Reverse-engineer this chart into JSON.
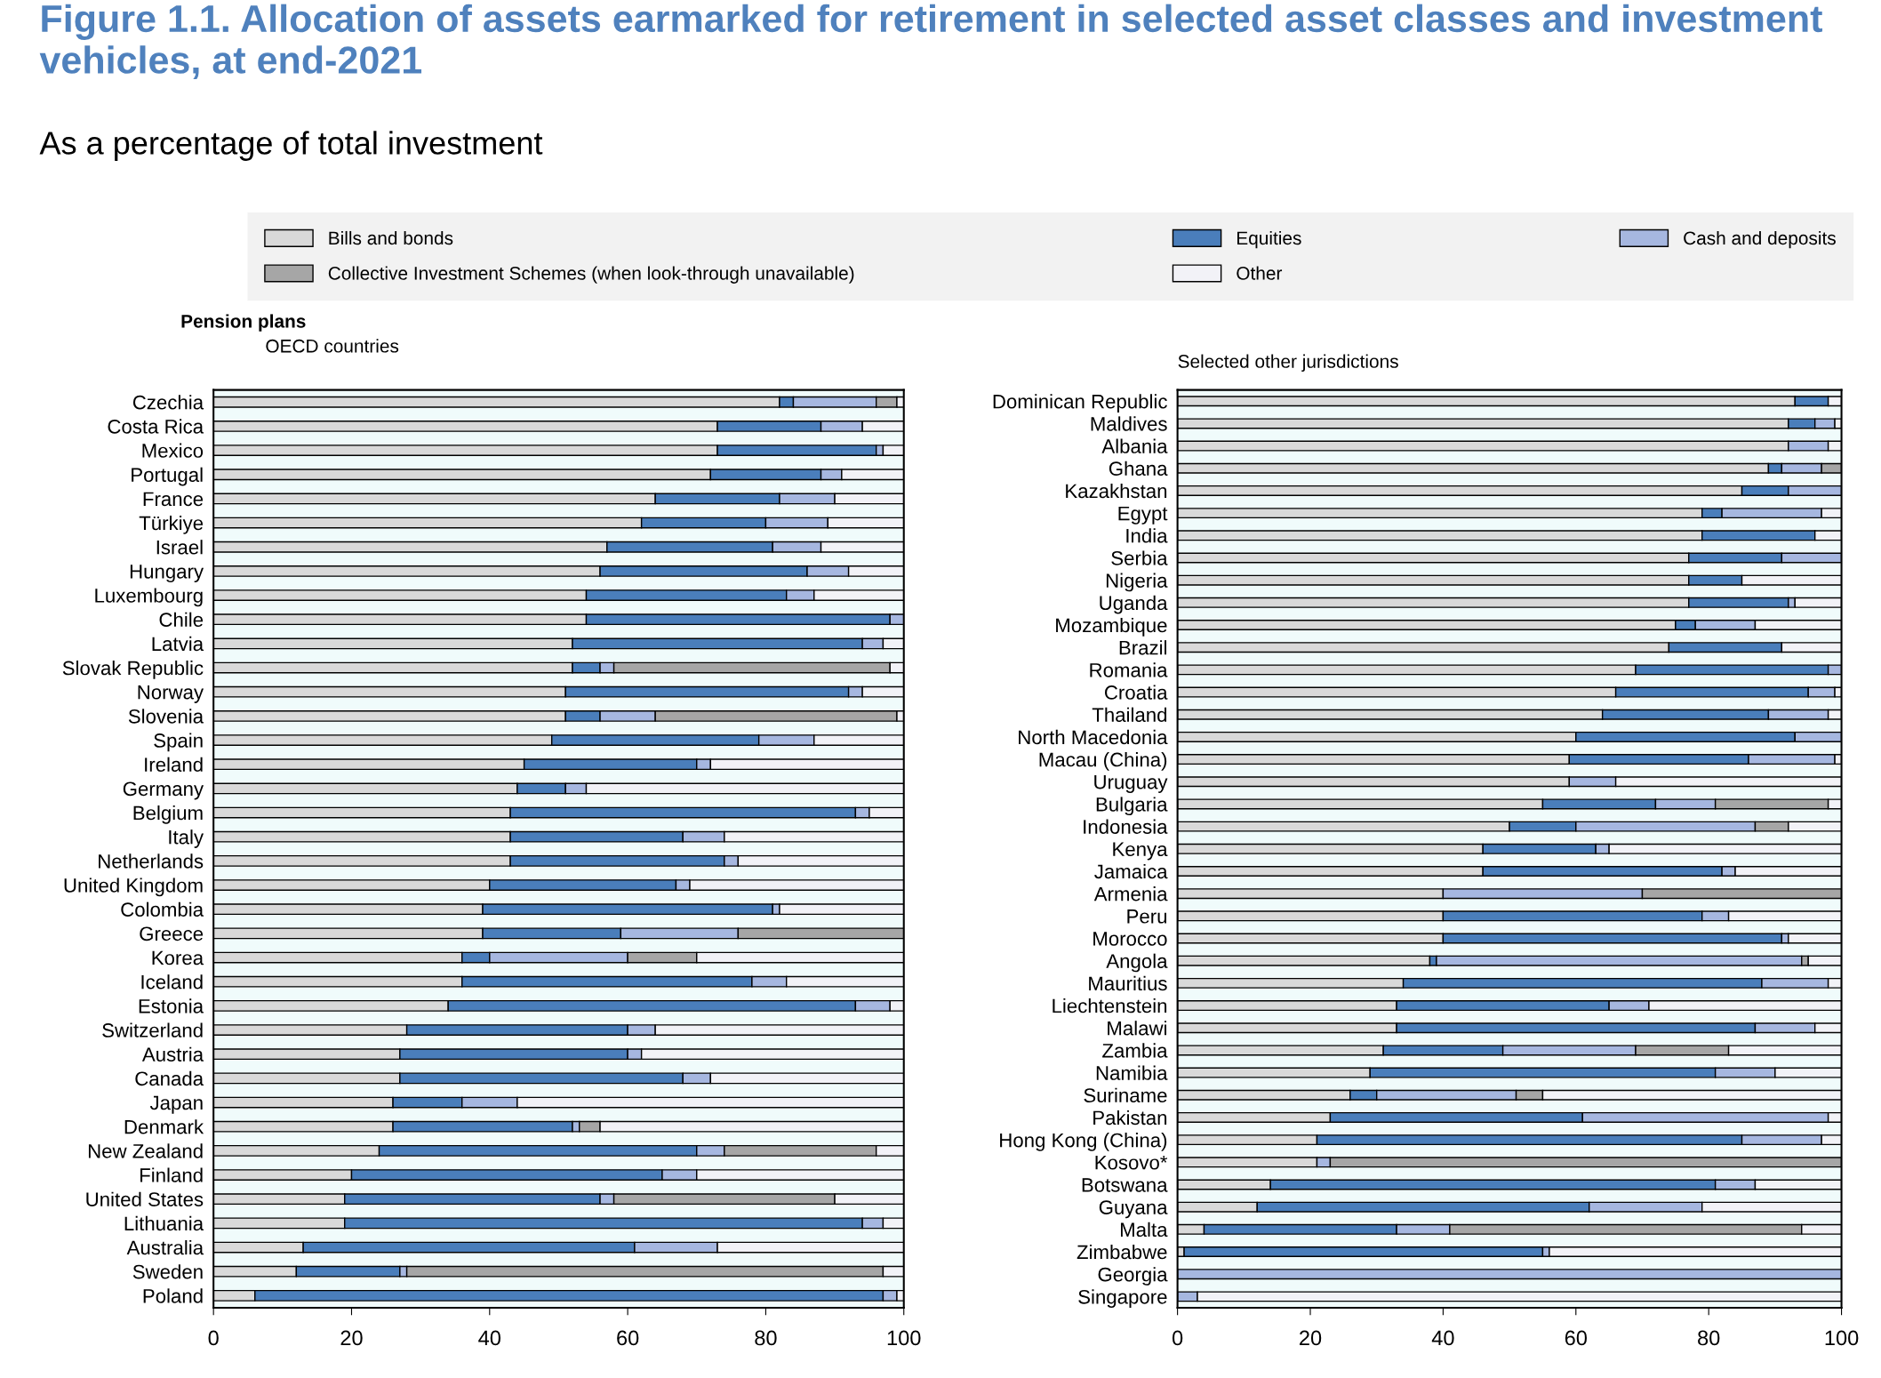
{
  "chart_data": [
    {
      "type": "bar",
      "orientation": "horizontal",
      "stacked": true,
      "legend": "top",
      "grid": false,
      "title": "Figure 1.1. Allocation of assets earmarked for retirement in selected asset classes and investment vehicles, at end-2021",
      "subtitle": "As a percentage of total investment",
      "annotations": [
        "Pension plans",
        "OECD countries"
      ],
      "xlim": [
        0,
        100
      ],
      "xticks": [
        0,
        20,
        40,
        60,
        80,
        100
      ],
      "categories": [
        "Czechia",
        "Costa Rica",
        "Mexico",
        "Portugal",
        "France",
        "Türkiye",
        "Israel",
        "Hungary",
        "Luxembourg",
        "Chile",
        "Latvia",
        "Slovak Republic",
        "Norway",
        "Slovenia",
        "Spain",
        "Ireland",
        "Germany",
        "Belgium",
        "Italy",
        "Netherlands",
        "United Kingdom",
        "Colombia",
        "Greece",
        "Korea",
        "Iceland",
        "Estonia",
        "Switzerland",
        "Austria",
        "Canada",
        "Japan",
        "Denmark",
        "New Zealand",
        "Finland",
        "United States",
        "Lithuania",
        "Australia",
        "Sweden",
        "Poland"
      ],
      "series": [
        {
          "name": "Bills and bonds",
          "color": "#d9d9d9",
          "values": [
            82,
            73,
            73,
            72,
            64,
            62,
            57,
            56,
            54,
            54,
            52,
            52,
            51,
            51,
            49,
            45,
            44,
            43,
            43,
            43,
            40,
            39,
            39,
            36,
            36,
            34,
            28,
            27,
            27,
            26,
            26,
            24,
            20,
            19,
            19,
            13,
            12,
            6
          ]
        },
        {
          "name": "Equities",
          "color": "#4a7ebb",
          "values": [
            2,
            15,
            23,
            16,
            18,
            18,
            24,
            30,
            29,
            44,
            42,
            4,
            41,
            5,
            30,
            25,
            7,
            50,
            25,
            31,
            27,
            42,
            20,
            4,
            42,
            59,
            32,
            33,
            41,
            10,
            26,
            46,
            45,
            37,
            75,
            48,
            15,
            91
          ]
        },
        {
          "name": "Cash and deposits",
          "color": "#a6b7e0",
          "values": [
            12,
            6,
            1,
            3,
            8,
            9,
            7,
            6,
            4,
            2,
            3,
            2,
            2,
            8,
            8,
            2,
            3,
            2,
            6,
            2,
            2,
            1,
            17,
            20,
            5,
            5,
            4,
            2,
            4,
            8,
            1,
            4,
            5,
            2,
            3,
            12,
            1,
            2
          ]
        },
        {
          "name": "Collective Investment Schemes (when look-through unavailable)",
          "color": "#a6a6a6",
          "values": [
            3,
            null,
            null,
            null,
            null,
            null,
            null,
            null,
            null,
            null,
            null,
            40,
            null,
            35,
            null,
            null,
            null,
            null,
            null,
            null,
            null,
            null,
            24,
            10,
            null,
            null,
            null,
            null,
            null,
            null,
            3,
            22,
            null,
            32,
            null,
            null,
            69,
            null
          ]
        },
        {
          "name": "Other",
          "color": "#f2f2f7",
          "values": [
            1,
            6,
            3,
            9,
            10,
            11,
            12,
            8,
            13,
            null,
            3,
            2,
            6,
            1,
            13,
            28,
            46,
            5,
            26,
            24,
            31,
            18,
            null,
            30,
            17,
            2,
            36,
            38,
            28,
            56,
            44,
            4,
            30,
            10,
            3,
            27,
            3,
            1
          ]
        }
      ]
    },
    {
      "type": "bar",
      "orientation": "horizontal",
      "stacked": true,
      "grid": false,
      "title": "Selected other jurisdictions",
      "xlim": [
        0,
        100
      ],
      "xticks": [
        0,
        20,
        40,
        60,
        80,
        100
      ],
      "categories": [
        "Dominican Republic",
        "Maldives",
        "Albania",
        "Ghana",
        "Kazakhstan",
        "Egypt",
        "India",
        "Serbia",
        "Nigeria",
        "Uganda",
        "Mozambique",
        "Brazil",
        "Romania",
        "Croatia",
        "Thailand",
        "North Macedonia",
        "Macau (China)",
        "Uruguay",
        "Bulgaria",
        "Indonesia",
        "Kenya",
        "Jamaica",
        "Armenia",
        "Peru",
        "Morocco",
        "Angola",
        "Mauritius",
        "Liechtenstein",
        "Malawi",
        "Zambia",
        "Namibia",
        "Suriname",
        "Pakistan",
        "Hong Kong (China)",
        "Kosovo*",
        "Botswana",
        "Guyana",
        "Malta",
        "Zimbabwe",
        "Georgia",
        "Singapore"
      ],
      "series": [
        {
          "color": "#d9d9d9",
          "values": [
            93,
            92,
            92,
            89,
            85,
            79,
            79,
            77,
            77,
            77,
            75,
            74,
            69,
            66,
            64,
            60,
            59,
            59,
            55,
            50,
            46,
            46,
            40,
            40,
            40,
            38,
            34,
            33,
            33,
            31,
            29,
            26,
            23,
            21,
            21,
            14,
            12,
            4,
            1,
            null,
            null
          ]
        },
        {
          "color": "#4a7ebb",
          "values": [
            5,
            4,
            null,
            2,
            7,
            3,
            17,
            14,
            8,
            15,
            3,
            17,
            29,
            29,
            25,
            33,
            27,
            null,
            17,
            10,
            17,
            36,
            null,
            39,
            51,
            1,
            54,
            32,
            54,
            18,
            52,
            4,
            38,
            64,
            null,
            67,
            50,
            29,
            54,
            null,
            null
          ]
        },
        {
          "color": "#a6b7e0",
          "values": [
            null,
            3,
            6,
            6,
            8,
            15,
            null,
            9,
            null,
            1,
            9,
            null,
            2,
            4,
            9,
            7,
            13,
            7,
            9,
            27,
            2,
            2,
            30,
            4,
            1,
            55,
            10,
            6,
            9,
            20,
            9,
            21,
            37,
            12,
            2,
            6,
            17,
            8,
            1,
            100,
            3
          ]
        },
        {
          "color": "#a6a6a6",
          "values": [
            null,
            null,
            null,
            3,
            null,
            null,
            null,
            null,
            null,
            null,
            null,
            null,
            null,
            null,
            null,
            null,
            null,
            null,
            17,
            5,
            null,
            null,
            30,
            null,
            null,
            1,
            null,
            null,
            null,
            14,
            null,
            4,
            null,
            null,
            77,
            null,
            null,
            53,
            null,
            null,
            null
          ]
        },
        {
          "color": "#f2f2f7",
          "values": [
            2,
            1,
            2,
            null,
            null,
            3,
            4,
            null,
            15,
            7,
            13,
            9,
            null,
            1,
            2,
            null,
            1,
            34,
            2,
            8,
            35,
            16,
            null,
            17,
            8,
            5,
            2,
            29,
            4,
            17,
            10,
            45,
            2,
            3,
            null,
            13,
            21,
            6,
            44,
            null,
            97
          ]
        }
      ]
    }
  ]
}
